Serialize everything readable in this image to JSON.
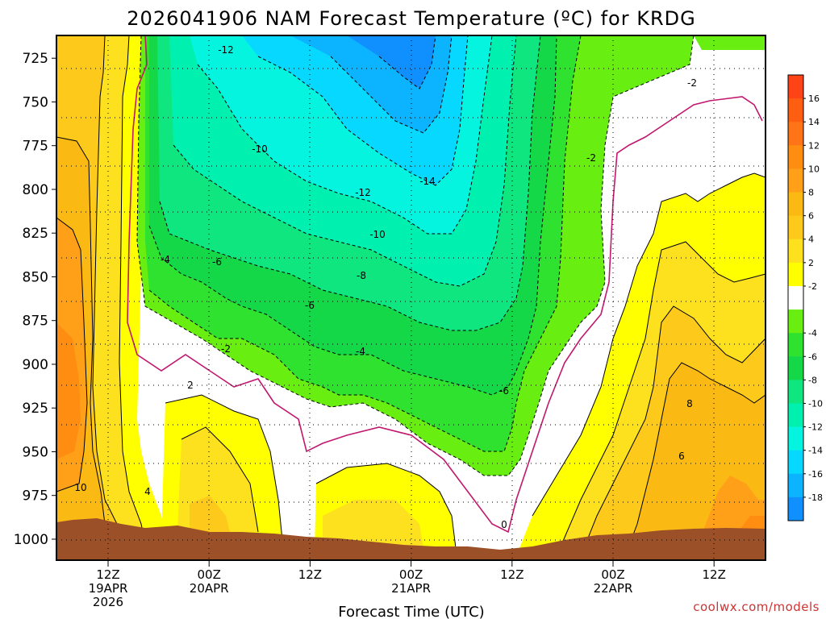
{
  "chart_data": {
    "type": "heatmap",
    "title": "2026041906 NAM Forecast Temperature (ºC) for KRDG",
    "xlabel": "Forecast Time (UTC)",
    "ylabel": "",
    "credit": "coolwx.com/models",
    "y_axis": {
      "ticks": [
        "725",
        "750",
        "775",
        "800",
        "825",
        "850",
        "875",
        "900",
        "925",
        "950",
        "975",
        "1000"
      ],
      "range": [
        712,
        1012
      ]
    },
    "x_axis": {
      "ticks": [
        {
          "lines": [
            "12Z",
            "19APR",
            "2026"
          ]
        },
        {
          "lines": [
            "00Z",
            "20APR"
          ]
        },
        {
          "lines": [
            "12Z"
          ]
        },
        {
          "lines": [
            "00Z",
            "21APR"
          ]
        },
        {
          "lines": [
            "12Z"
          ]
        },
        {
          "lines": [
            "00Z",
            "22APR"
          ]
        },
        {
          "lines": [
            "12Z"
          ]
        }
      ]
    },
    "colorbar": {
      "labels": [
        "16",
        "14",
        "12",
        "10",
        "8",
        "6",
        "4",
        "2",
        "-2",
        "-4",
        "-6",
        "-8",
        "-10",
        "-12",
        "-14",
        "-16",
        "-18"
      ],
      "colors": {
        "c18": "#fe4416",
        "c16": "#fe5e12",
        "c14": "#ff7416",
        "c12": "#ff8d12",
        "c10": "#ffa018",
        "c8": "#fbb914",
        "c6": "#fdca1c",
        "c4": "#fde01e",
        "c2": "#ffff00",
        "c0": "#ffffff",
        "m2": "#68ee10",
        "m4": "#30e230",
        "m6": "#14d848",
        "m8": "#10e680",
        "m10": "#00f0b0",
        "m12": "#04f4e0",
        "m14": "#06d8ff",
        "m16": "#0cb4ff",
        "m18": "#1090ff"
      }
    },
    "contour_labels": [
      "-12",
      "-2",
      "-10",
      "-2",
      "-14",
      "-12",
      "-10",
      "-4",
      "-6",
      "-8",
      "-6",
      "-2",
      "-4",
      "-6",
      "2",
      "4",
      "10",
      "0",
      "8",
      "6"
    ],
    "ground_color": "#9c5028",
    "zero_line_color": "#c0186e"
  }
}
